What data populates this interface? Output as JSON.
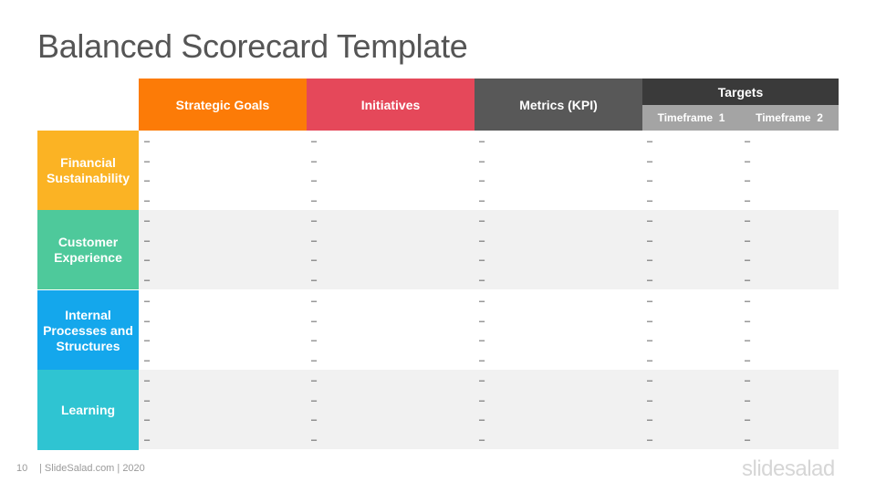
{
  "slide": {
    "title": "Balanced Scorecard Template",
    "page_number": "10",
    "footer_text": "| SlideSalad.com | 2020",
    "logo_text": "slidesalad"
  },
  "table": {
    "columns": [
      {
        "label": "Strategic Goals",
        "color": "#fc7b07"
      },
      {
        "label": "Initiatives",
        "color": "#e5485a"
      },
      {
        "label": "Metrics (KPI)",
        "color": "#585858"
      }
    ],
    "targets": {
      "label": "Targets",
      "color": "#3a3a3a",
      "sub_color": "#a4a4a4",
      "subcolumns": [
        "Timeframe  1",
        "Timeframe  2"
      ]
    },
    "rows": [
      {
        "label": "Financial Sustainability",
        "color": "#fbb324",
        "bg": "#ffffff",
        "cells": [
          [
            "–",
            "–",
            "–",
            "–"
          ],
          [
            "–",
            "–",
            "–",
            "–"
          ],
          [
            "–",
            "–",
            "–",
            "–"
          ],
          [
            "–",
            "–",
            "–",
            "–"
          ],
          [
            "–",
            "–",
            "–",
            "–"
          ]
        ]
      },
      {
        "label": "Customer Experience",
        "color": "#4ec99b",
        "bg": "#f1f1f1",
        "cells": [
          [
            "–",
            "–",
            "–",
            "–"
          ],
          [
            "–",
            "–",
            "–",
            "–"
          ],
          [
            "–",
            "–",
            "–",
            "–"
          ],
          [
            "–",
            "–",
            "–",
            "–"
          ],
          [
            "–",
            "–",
            "–",
            "–"
          ]
        ]
      },
      {
        "label": "Internal Processes and Structures",
        "color": "#14a7ec",
        "bg": "#ffffff",
        "cells": [
          [
            "–",
            "–",
            "–",
            "–"
          ],
          [
            "–",
            "–",
            "–",
            "–"
          ],
          [
            "–",
            "–",
            "–",
            "–"
          ],
          [
            "–",
            "–",
            "–",
            "–"
          ],
          [
            "–",
            "–",
            "–",
            "–"
          ]
        ]
      },
      {
        "label": "Learning",
        "color": "#2fc4d2",
        "bg": "#f1f1f1",
        "cells": [
          [
            "–",
            "–",
            "–",
            "–"
          ],
          [
            "–",
            "–",
            "–",
            "–"
          ],
          [
            "–",
            "–",
            "–",
            "–"
          ],
          [
            "–",
            "–",
            "–",
            "–"
          ],
          [
            "–",
            "–",
            "–",
            "–"
          ]
        ]
      }
    ]
  }
}
